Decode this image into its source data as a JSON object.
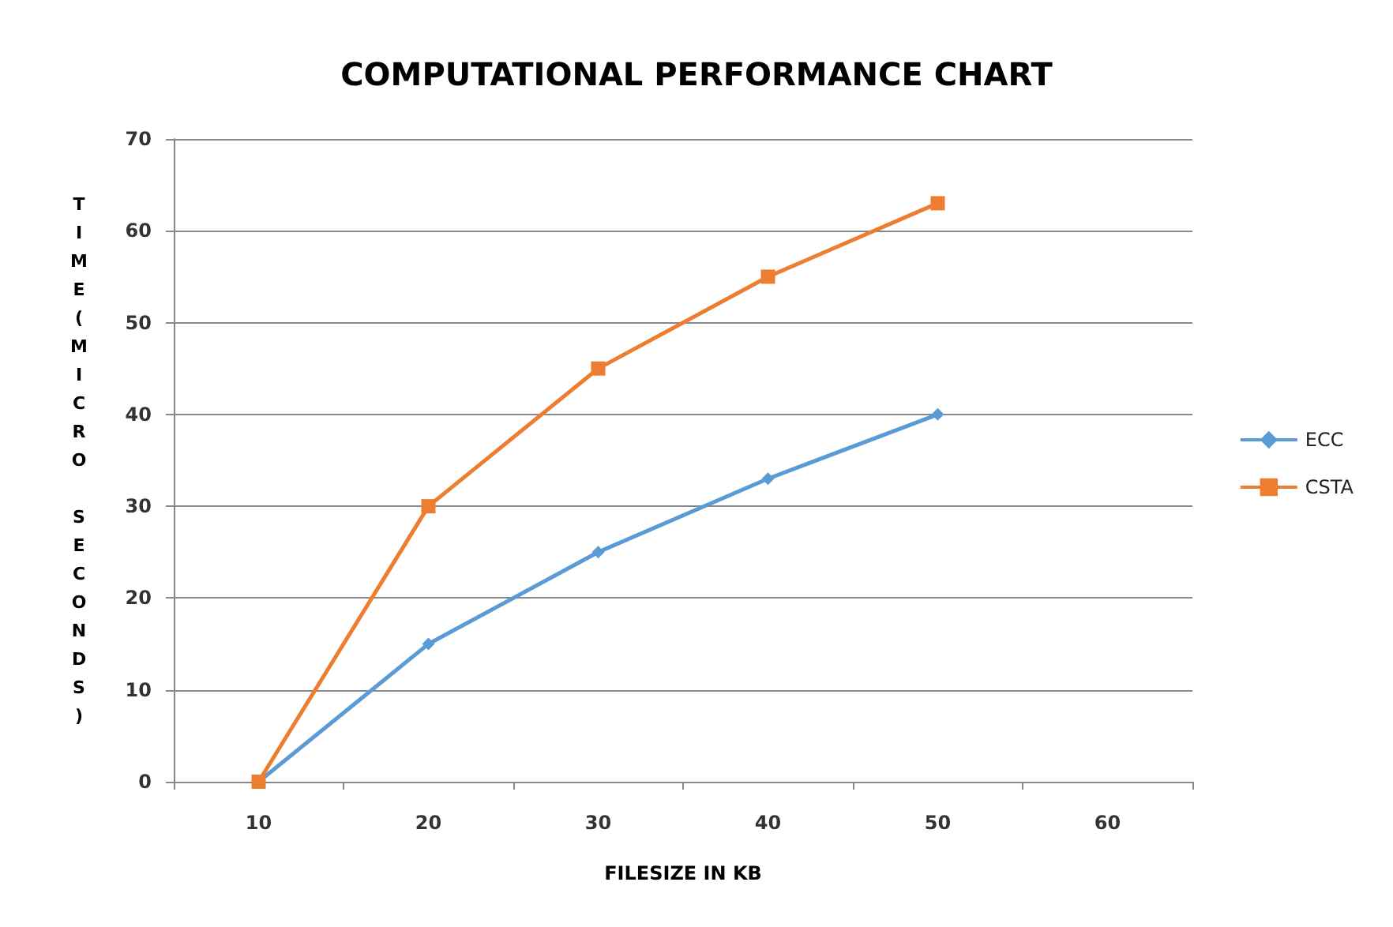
{
  "chart_data": {
    "type": "line",
    "title": "COMPUTATIONAL PERFORMANCE CHART",
    "xlabel": "FILESIZE IN KB",
    "ylabel": "TIME(MICRO SECONDS)",
    "categories": [
      "10",
      "20",
      "30",
      "40",
      "50",
      "60"
    ],
    "series": [
      {
        "name": "ECC",
        "color": "#5b9bd5",
        "marker": "diamond",
        "values": [
          0,
          15,
          25,
          33,
          40,
          null
        ]
      },
      {
        "name": "CSTA",
        "color": "#ed7d31",
        "marker": "square",
        "values": [
          0,
          30,
          45,
          55,
          63,
          null
        ]
      }
    ],
    "ylim": [
      0,
      70
    ],
    "yticks": [
      0,
      10,
      20,
      30,
      40,
      50,
      60,
      70
    ],
    "grid": "y",
    "legend": "right"
  }
}
